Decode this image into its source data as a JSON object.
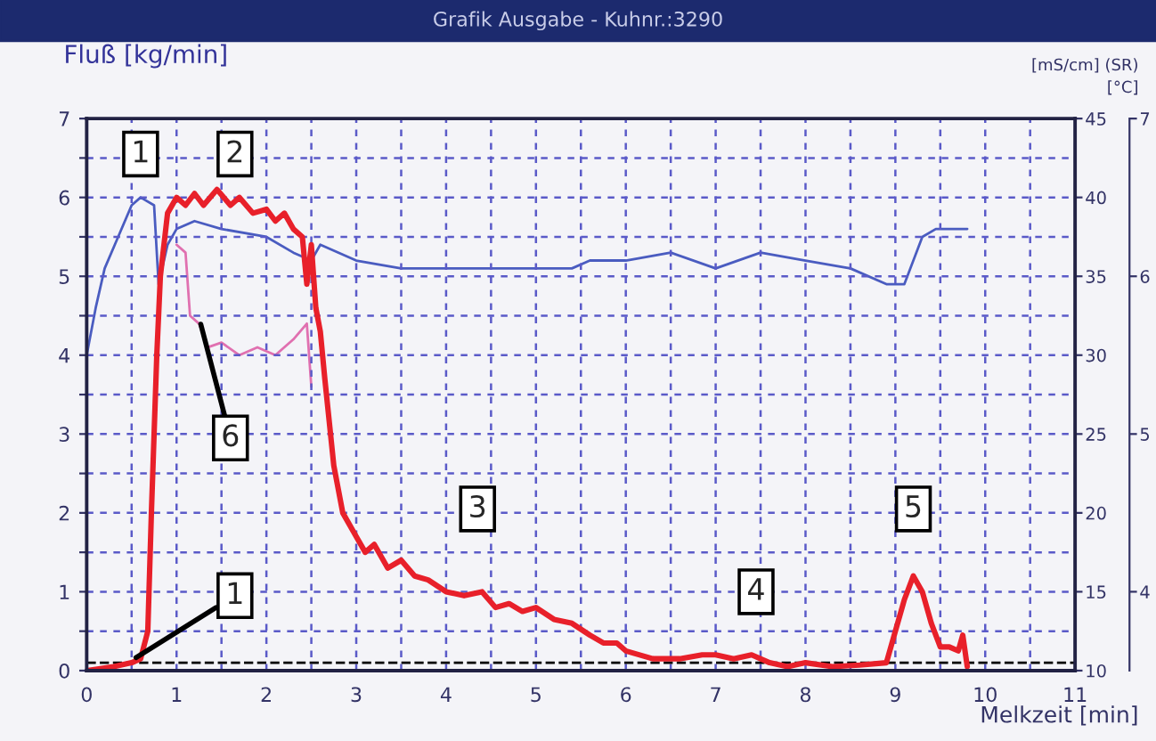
{
  "chart_data": {
    "type": "line",
    "title": "Grafik Ausgabe - Kuhnr.:3290",
    "ylabel": "Fluß [kg/min]",
    "xlabel": "Melkzeit [min]",
    "y2label": "[°C]",
    "y3label": "[mS/cm] (SR)",
    "xlim": [
      0,
      11
    ],
    "xticks": [
      0,
      {
        "value": 0.5,
        "label": null
      },
      1,
      {
        "value": 1.5,
        "label": null
      },
      2,
      {
        "value": 2.5,
        "label": null
      },
      3,
      {
        "value": 3.5,
        "label": null
      },
      4,
      {
        "value": 4.5,
        "label": null
      },
      5,
      {
        "value": 5.5,
        "label": null
      },
      6,
      {
        "value": 6.5,
        "label": null
      },
      7,
      {
        "value": 7.5,
        "label": null
      },
      8,
      {
        "value": 8.5,
        "label": null
      },
      9,
      {
        "value": 9.5,
        "label": null
      },
      10,
      {
        "value": 10.5,
        "label": null
      },
      11
    ],
    "ylim": [
      0,
      7
    ],
    "yticks": [
      0,
      {
        "value": 0.5,
        "label": null
      },
      1,
      {
        "value": 1.5,
        "label": null
      },
      2,
      {
        "value": 2.5,
        "label": null
      },
      3,
      {
        "value": 3.5,
        "label": null
      },
      4,
      {
        "value": 4.5,
        "label": null
      },
      5,
      {
        "value": 5.5,
        "label": null
      },
      6,
      {
        "value": 6.5,
        "label": null
      },
      7
    ],
    "y2lim": [
      10,
      45
    ],
    "y2ticks": [
      10,
      15,
      20,
      25,
      30,
      35,
      40,
      45
    ],
    "y3lim": [
      3.5,
      7
    ],
    "y3ticks": [
      4,
      5,
      6,
      7
    ],
    "grid": true,
    "marker": "none",
    "series": [
      {
        "color": "#4a5cc0",
        "axis": "y2",
        "x": [
          0,
          0.1,
          0.2,
          0.35,
          0.5,
          0.6,
          0.75,
          0.8,
          0.9,
          1.0,
          1.2,
          1.5,
          2.0,
          2.3,
          2.5,
          2.6,
          3.0,
          3.5,
          4.0,
          4.5,
          5.0,
          5.4,
          5.6,
          6.0,
          6.5,
          7.0,
          7.5,
          8.0,
          8.5,
          8.9,
          9.1,
          9.3,
          9.45,
          9.8
        ],
        "values": [
          30,
          33,
          35.5,
          37.5,
          39.5,
          40,
          39.5,
          34.5,
          37,
          38,
          38.5,
          38,
          37.5,
          36.5,
          36,
          37,
          36,
          35.5,
          35.5,
          35.5,
          35.5,
          35.5,
          36,
          36,
          36.5,
          35.5,
          36.5,
          36,
          35.5,
          34.5,
          34.5,
          37.5,
          38,
          38
        ]
      },
      {
        "color": "#e070b0",
        "axis": "y3",
        "x": [
          1.0,
          1.1,
          1.15,
          1.25,
          1.35,
          1.5,
          1.7,
          1.9,
          2.1,
          2.3,
          2.45,
          2.5
        ],
        "values": [
          6.2,
          6.15,
          5.75,
          5.7,
          5.55,
          5.58,
          5.5,
          5.55,
          5.5,
          5.6,
          5.7,
          5.3
        ]
      },
      {
        "color": "#e8202a",
        "x": [
          0,
          0.3,
          0.5,
          0.6,
          0.68,
          0.72,
          0.78,
          0.82,
          0.9,
          1.0,
          1.1,
          1.2,
          1.3,
          1.45,
          1.6,
          1.7,
          1.85,
          2.0,
          2.1,
          2.2,
          2.3,
          2.4,
          2.45,
          2.5,
          2.55,
          2.6,
          2.65,
          2.75,
          2.85,
          3.0,
          3.1,
          3.2,
          3.35,
          3.5,
          3.65,
          3.8,
          4.0,
          4.2,
          4.4,
          4.55,
          4.7,
          4.85,
          5.0,
          5.2,
          5.4,
          5.6,
          5.75,
          5.9,
          6.0,
          6.3,
          6.6,
          6.85,
          7.0,
          7.2,
          7.4,
          7.6,
          7.8,
          8.0,
          8.3,
          8.6,
          8.9,
          9.0,
          9.1,
          9.2,
          9.3,
          9.4,
          9.5,
          9.6,
          9.7,
          9.75,
          9.8
        ],
        "values": [
          0,
          0.05,
          0.1,
          0.15,
          0.5,
          2.0,
          4.0,
          5.0,
          5.8,
          6.0,
          5.9,
          6.05,
          5.9,
          6.1,
          5.9,
          6.0,
          5.8,
          5.85,
          5.7,
          5.8,
          5.6,
          5.5,
          4.9,
          5.4,
          4.6,
          4.3,
          3.7,
          2.6,
          2.0,
          1.7,
          1.5,
          1.6,
          1.3,
          1.4,
          1.2,
          1.15,
          1.0,
          0.95,
          1.0,
          0.8,
          0.85,
          0.75,
          0.8,
          0.65,
          0.6,
          0.45,
          0.35,
          0.35,
          0.25,
          0.15,
          0.15,
          0.2,
          0.2,
          0.15,
          0.2,
          0.1,
          0.05,
          0.1,
          0.05,
          0.07,
          0.1,
          0.5,
          0.9,
          1.2,
          1.0,
          0.6,
          0.3,
          0.3,
          0.25,
          0.45,
          0.05
        ]
      }
    ],
    "ref_lines": [
      {
        "axis": "y",
        "value": 0.1,
        "color": "#000000",
        "line_style": "dashed"
      }
    ],
    "annotations": [
      {
        "text": "1",
        "x": 0.6,
        "y": 6.55
      },
      {
        "text": "2",
        "x": 1.65,
        "y": 6.55
      },
      {
        "text": "6",
        "x": 1.6,
        "y": 2.95
      },
      {
        "text": "3",
        "x": 4.35,
        "y": 2.05
      },
      {
        "text": "1",
        "x": 1.65,
        "y": 0.95
      },
      {
        "text": "4",
        "x": 7.45,
        "y": 1.0
      },
      {
        "text": "5",
        "x": 9.2,
        "y": 2.05
      }
    ]
  }
}
